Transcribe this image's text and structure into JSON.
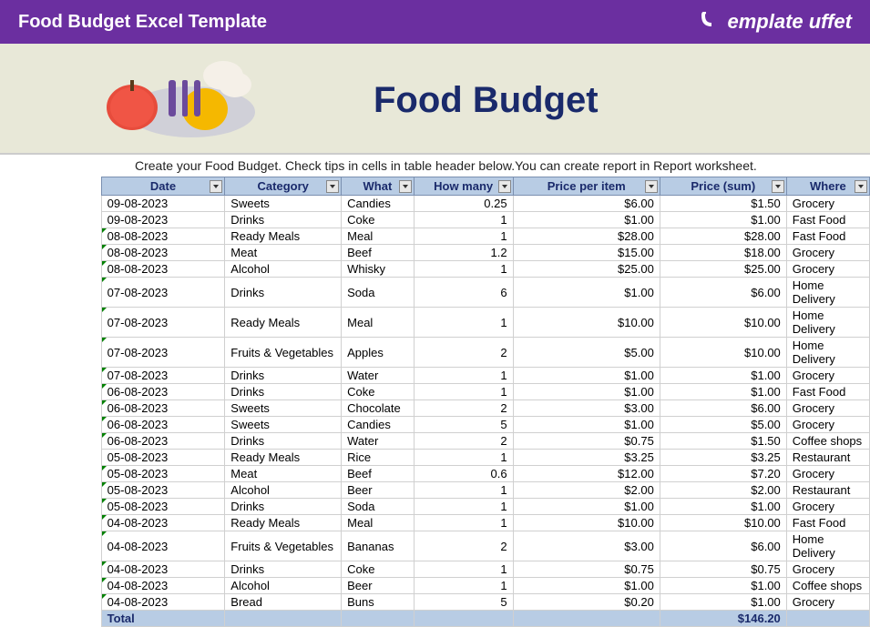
{
  "header": {
    "title": "Food Budget Excel Template",
    "logo_text": "emplate uffet"
  },
  "doc": {
    "title": "Food Budget",
    "subtitle": "Create your Food Budget. Check tips in cells in table header below.You can create report in Report worksheet."
  },
  "colors": {
    "header_bg": "#6b2fa0",
    "doc_bg": "#e8e8d8",
    "th_bg": "#b8cce4",
    "th_color": "#1a2a6b"
  },
  "columns": [
    "Date",
    "Category",
    "What",
    "How many",
    "Price per item",
    "Price (sum)",
    "Where"
  ],
  "rows": [
    {
      "date": "09-08-2023",
      "cat": "Sweets",
      "what": "Candies",
      "qty": "0.25",
      "ppi": "$6.00",
      "psum": "$1.50",
      "where": "Grocery",
      "tick": false
    },
    {
      "date": "09-08-2023",
      "cat": "Drinks",
      "what": "Coke",
      "qty": "1",
      "ppi": "$1.00",
      "psum": "$1.00",
      "where": "Fast Food",
      "tick": false
    },
    {
      "date": "08-08-2023",
      "cat": "Ready Meals",
      "what": "Meal",
      "qty": "1",
      "ppi": "$28.00",
      "psum": "$28.00",
      "where": "Fast Food",
      "tick": true
    },
    {
      "date": "08-08-2023",
      "cat": "Meat",
      "what": "Beef",
      "qty": "1.2",
      "ppi": "$15.00",
      "psum": "$18.00",
      "where": "Grocery",
      "tick": true
    },
    {
      "date": "08-08-2023",
      "cat": "Alcohol",
      "what": "Whisky",
      "qty": "1",
      "ppi": "$25.00",
      "psum": "$25.00",
      "where": "Grocery",
      "tick": true
    },
    {
      "date": "07-08-2023",
      "cat": "Drinks",
      "what": "Soda",
      "qty": "6",
      "ppi": "$1.00",
      "psum": "$6.00",
      "where": "Home Delivery",
      "tick": true
    },
    {
      "date": "07-08-2023",
      "cat": "Ready Meals",
      "what": "Meal",
      "qty": "1",
      "ppi": "$10.00",
      "psum": "$10.00",
      "where": "Home Delivery",
      "tick": true
    },
    {
      "date": "07-08-2023",
      "cat": "Fruits & Vegetables",
      "what": "Apples",
      "qty": "2",
      "ppi": "$5.00",
      "psum": "$10.00",
      "where": "Home Delivery",
      "tick": true
    },
    {
      "date": "07-08-2023",
      "cat": "Drinks",
      "what": "Water",
      "qty": "1",
      "ppi": "$1.00",
      "psum": "$1.00",
      "where": "Grocery",
      "tick": true
    },
    {
      "date": "06-08-2023",
      "cat": "Drinks",
      "what": "Coke",
      "qty": "1",
      "ppi": "$1.00",
      "psum": "$1.00",
      "where": "Fast Food",
      "tick": true
    },
    {
      "date": "06-08-2023",
      "cat": "Sweets",
      "what": "Chocolate",
      "qty": "2",
      "ppi": "$3.00",
      "psum": "$6.00",
      "where": "Grocery",
      "tick": true
    },
    {
      "date": "06-08-2023",
      "cat": "Sweets",
      "what": "Candies",
      "qty": "5",
      "ppi": "$1.00",
      "psum": "$5.00",
      "where": "Grocery",
      "tick": true
    },
    {
      "date": "06-08-2023",
      "cat": "Drinks",
      "what": "Water",
      "qty": "2",
      "ppi": "$0.75",
      "psum": "$1.50",
      "where": "Coffee shops",
      "tick": true
    },
    {
      "date": "05-08-2023",
      "cat": "Ready Meals",
      "what": "Rice",
      "qty": "1",
      "ppi": "$3.25",
      "psum": "$3.25",
      "where": "Restaurant",
      "tick": false
    },
    {
      "date": "05-08-2023",
      "cat": "Meat",
      "what": "Beef",
      "qty": "0.6",
      "ppi": "$12.00",
      "psum": "$7.20",
      "where": "Grocery",
      "tick": true
    },
    {
      "date": "05-08-2023",
      "cat": "Alcohol",
      "what": "Beer",
      "qty": "1",
      "ppi": "$2.00",
      "psum": "$2.00",
      "where": "Restaurant",
      "tick": true
    },
    {
      "date": "05-08-2023",
      "cat": "Drinks",
      "what": "Soda",
      "qty": "1",
      "ppi": "$1.00",
      "psum": "$1.00",
      "where": "Grocery",
      "tick": true
    },
    {
      "date": "04-08-2023",
      "cat": "Ready Meals",
      "what": "Meal",
      "qty": "1",
      "ppi": "$10.00",
      "psum": "$10.00",
      "where": "Fast Food",
      "tick": true
    },
    {
      "date": "04-08-2023",
      "cat": "Fruits & Vegetables",
      "what": "Bananas",
      "qty": "2",
      "ppi": "$3.00",
      "psum": "$6.00",
      "where": "Home Delivery",
      "tick": true
    },
    {
      "date": "04-08-2023",
      "cat": "Drinks",
      "what": "Coke",
      "qty": "1",
      "ppi": "$0.75",
      "psum": "$0.75",
      "where": "Grocery",
      "tick": true
    },
    {
      "date": "04-08-2023",
      "cat": "Alcohol",
      "what": "Beer",
      "qty": "1",
      "ppi": "$1.00",
      "psum": "$1.00",
      "where": "Coffee shops",
      "tick": true
    },
    {
      "date": "04-08-2023",
      "cat": "Bread",
      "what": "Buns",
      "qty": "5",
      "ppi": "$0.20",
      "psum": "$1.00",
      "where": "Grocery",
      "tick": true
    }
  ],
  "total": {
    "label": "Total",
    "sum": "$146.20"
  }
}
